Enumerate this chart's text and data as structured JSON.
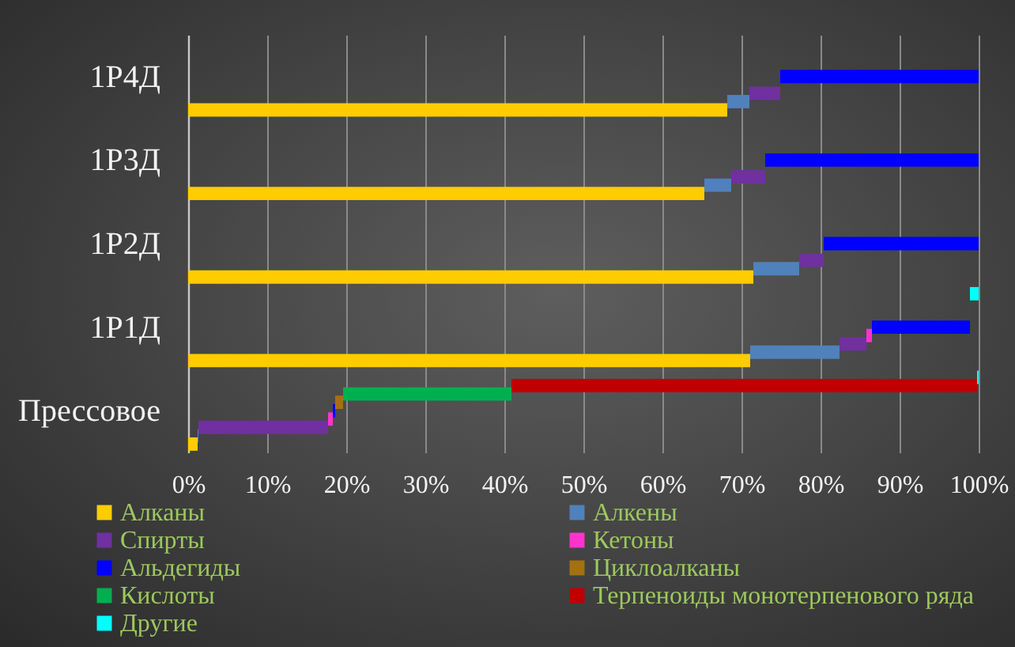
{
  "chart_data": {
    "type": "bar",
    "orientation": "horizontal",
    "stacked": true,
    "categories": [
      "1Р4Д",
      "1Р3Д",
      "1Р2Д",
      "1Р1Д",
      "Прессовое"
    ],
    "series": [
      {
        "name": "Алканы",
        "color": "#ffcc00",
        "values": [
          68.2,
          65.3,
          71.5,
          71.1,
          1.2
        ]
      },
      {
        "name": "Алкены",
        "color": "#4f81bd",
        "values": [
          2.8,
          3.4,
          5.8,
          11.3,
          0.1
        ]
      },
      {
        "name": "Спирты",
        "color": "#7030a0",
        "values": [
          3.9,
          4.3,
          3.1,
          3.4,
          16.4
        ]
      },
      {
        "name": "Кетоны",
        "color": "#ff33cc",
        "values": [
          null,
          null,
          null,
          0.7,
          0.6
        ]
      },
      {
        "name": "Альдегиды",
        "color": "#0000ff",
        "values": [
          25.1,
          27.0,
          19.6,
          12.4,
          0.3
        ]
      },
      {
        "name": "Циклоалканы",
        "color": "#a5700f",
        "values": [
          null,
          null,
          null,
          null,
          1.0
        ]
      },
      {
        "name": "Кислоты",
        "color": "#00b050",
        "values": [
          null,
          null,
          null,
          null,
          21.3
        ]
      },
      {
        "name": "Терпеноиды монотерпенового ряда",
        "color": "#c00000",
        "values": [
          null,
          null,
          null,
          null,
          58.9
        ]
      },
      {
        "name": "Другие",
        "color": "#00ffff",
        "values": [
          null,
          null,
          null,
          1.1,
          0.2
        ]
      }
    ],
    "xlim": [
      0,
      100
    ],
    "xticks": [
      {
        "value": 0,
        "label": "0%"
      },
      {
        "value": 10,
        "label": "10%"
      },
      {
        "value": 20,
        "label": "20%"
      },
      {
        "value": 30,
        "label": "30%"
      },
      {
        "value": 40,
        "label": "40%"
      },
      {
        "value": 50,
        "label": "50%"
      },
      {
        "value": 60,
        "label": "60%"
      },
      {
        "value": 70,
        "label": "70%"
      },
      {
        "value": 80,
        "label": "80%"
      },
      {
        "value": 90,
        "label": "90%"
      },
      {
        "value": 100,
        "label": "100%"
      }
    ],
    "grid": "x",
    "legend": "bottom"
  }
}
